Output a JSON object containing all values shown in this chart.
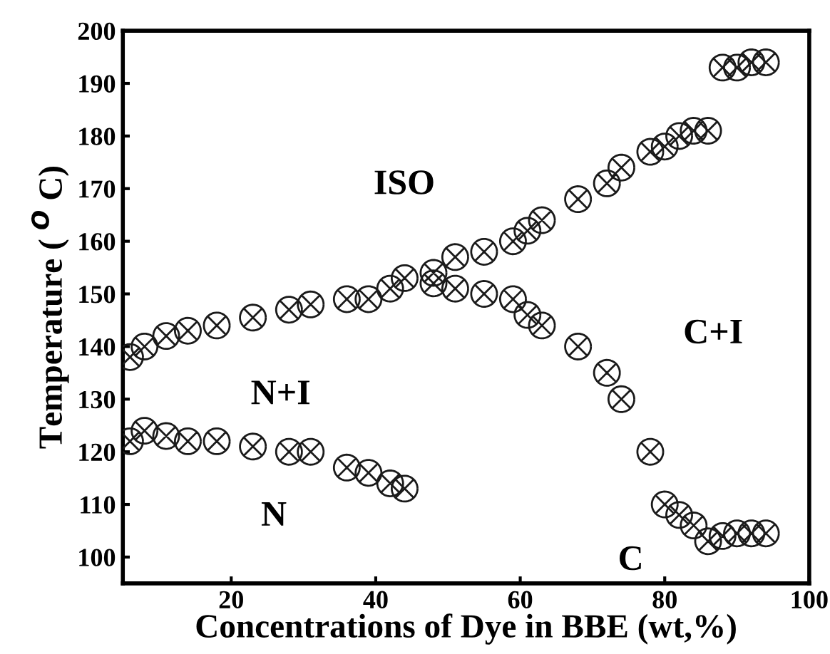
{
  "chart_data": {
    "type": "scatter",
    "xlabel": "Concentrations of Dye in BBE (wt,%)",
    "ylabel": "Temperature ( $^{O}$ C)",
    "xlim": [
      5,
      100
    ],
    "ylim": [
      95,
      200
    ],
    "xticks": [
      20,
      40,
      60,
      80,
      100
    ],
    "yticks": [
      100,
      110,
      120,
      130,
      140,
      150,
      160,
      170,
      180,
      190,
      200
    ],
    "grid": false,
    "legend": false,
    "marker": "cross",
    "annotations": [
      "ISO",
      "N+I",
      "N",
      "C",
      "C+I"
    ],
    "series": [
      {
        "color": "#1a1a1a",
        "x": [
          6,
          8,
          11,
          14,
          18,
          23,
          28,
          31,
          36,
          39,
          42,
          44,
          48,
          51,
          55,
          59,
          61,
          63,
          68,
          72,
          74,
          78,
          80,
          82,
          84,
          86,
          88,
          90,
          92,
          94
        ],
        "values": [
          138,
          140,
          142,
          143,
          144,
          145.5,
          147,
          148,
          149,
          149,
          151,
          153,
          154,
          157,
          158,
          160,
          162,
          164,
          168,
          171,
          174,
          177,
          178,
          180,
          181,
          181,
          193,
          193,
          194,
          194
        ]
      },
      {
        "color": "#1a1a1a",
        "x": [
          48,
          51,
          55,
          59,
          61,
          63,
          68,
          72,
          74,
          78,
          80,
          82,
          84,
          86,
          88,
          90,
          92,
          94
        ],
        "values": [
          152,
          151,
          150,
          149,
          146,
          144,
          140,
          135,
          130,
          120,
          110,
          108,
          106,
          103,
          104,
          104.5,
          104.5,
          104.5
        ]
      },
      {
        "color": "#1a1a1a",
        "x": [
          6,
          8,
          11,
          14,
          18,
          23,
          28,
          31,
          36,
          39,
          42,
          44
        ],
        "values": [
          122,
          124,
          123,
          122,
          122,
          121,
          120,
          120,
          117,
          116,
          114,
          113
        ]
      }
    ]
  }
}
